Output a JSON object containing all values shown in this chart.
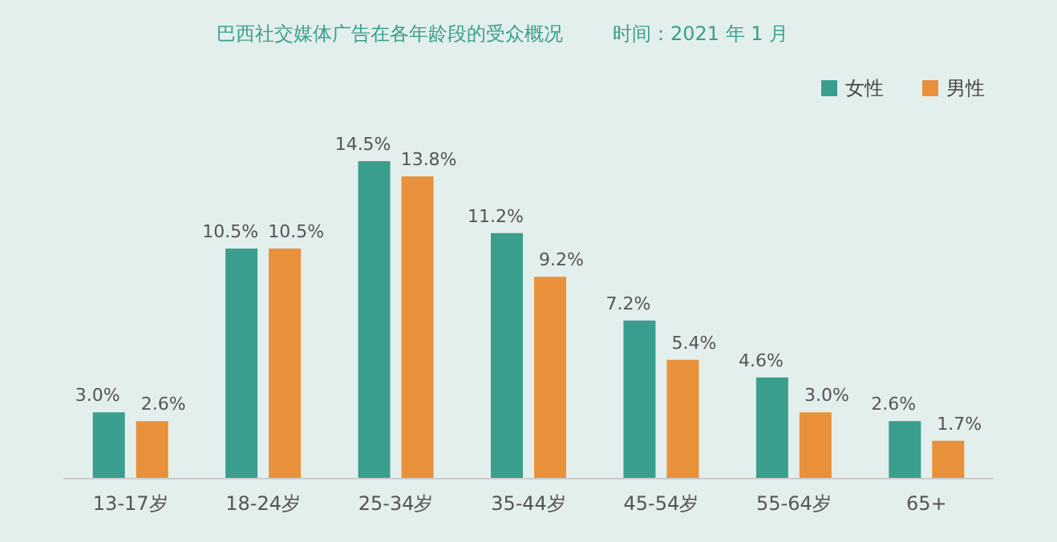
{
  "chart_data": {
    "type": "bar",
    "title": "巴西社交媒体广告在各年龄段的受众概况",
    "subtitle": "时间：2021 年 1 月",
    "categories": [
      "13-17岁",
      "18-24岁",
      "25-34岁",
      "35-44岁",
      "45-54岁",
      "55-64岁",
      "65+"
    ],
    "series": [
      {
        "name": "女性",
        "color": "#3a9e8f",
        "values": [
          3.0,
          10.5,
          14.5,
          11.2,
          7.2,
          4.6,
          2.6
        ],
        "value_labels": [
          "3.0%",
          "10.5%",
          "14.5%",
          "11.2%",
          "7.2%",
          "4.6%",
          "2.6%"
        ]
      },
      {
        "name": "男性",
        "color": "#e8913a",
        "values": [
          2.6,
          10.5,
          13.8,
          9.2,
          5.4,
          3.0,
          1.7
        ],
        "value_labels": [
          "2.6%",
          "10.5%",
          "13.8%",
          "9.2%",
          "5.4%",
          "3.0%",
          "1.7%"
        ]
      }
    ],
    "legend": "top right"
  }
}
